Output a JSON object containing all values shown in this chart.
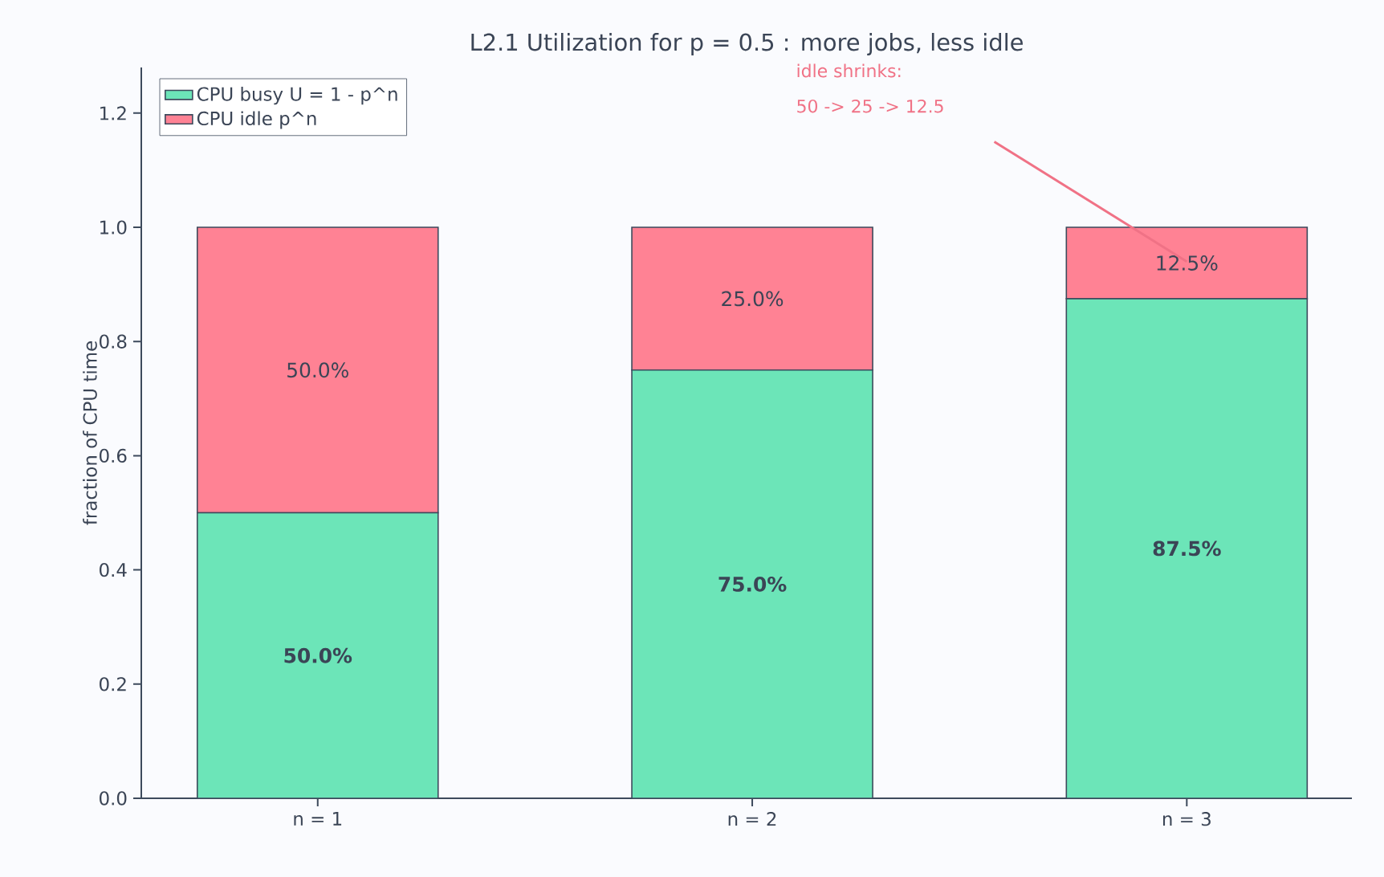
{
  "chart_data": {
    "type": "bar",
    "stacked": true,
    "title": "L2.1  Utilization for p = 0.5 : more jobs, less idle",
    "ylabel": "fraction of CPU time",
    "categories": [
      "n = 1",
      "n = 2",
      "n = 3"
    ],
    "series": [
      {
        "name": "CPU busy  U = 1 - p^n",
        "color": "#6ce5b8",
        "values": [
          0.5,
          0.75,
          0.875
        ],
        "value_labels": [
          "50.0%",
          "75.0%",
          "87.5%"
        ]
      },
      {
        "name": "CPU idle  p^n",
        "color": "#ff8294",
        "values": [
          0.5,
          0.25,
          0.125
        ],
        "value_labels": [
          "50.0%",
          "25.0%",
          "12.5%"
        ]
      }
    ],
    "ylim": [
      0,
      1.28
    ],
    "yticks": [
      {
        "value": 0,
        "label": "0.0"
      },
      {
        "value": 0.2,
        "label": "0.2"
      },
      {
        "value": 0.4,
        "label": "0.4"
      },
      {
        "value": 0.6,
        "label": "0.6"
      },
      {
        "value": 0.8,
        "label": "0.8"
      },
      {
        "value": 1.0,
        "label": "1.0"
      },
      {
        "value": 1.2,
        "label": "1.2"
      }
    ],
    "legend": "top left",
    "grid": false,
    "annotations": [
      "idle shrinks:",
      "50 -> 25 -> 12.5"
    ]
  }
}
